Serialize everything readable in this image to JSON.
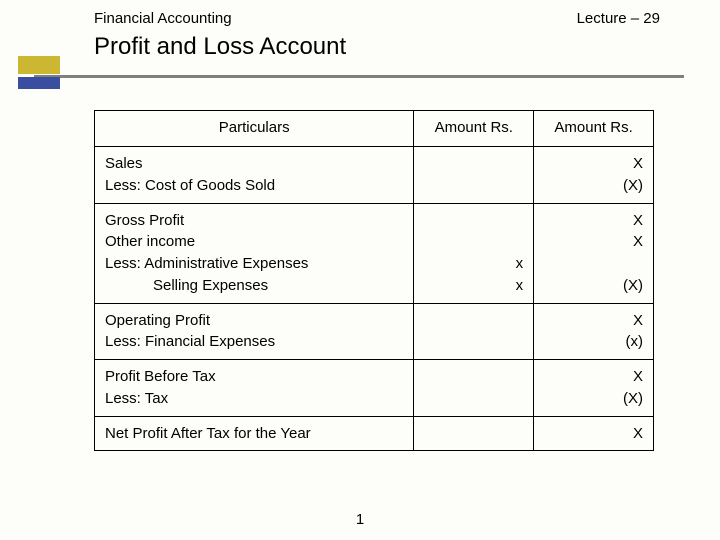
{
  "header": {
    "course": "Financial Accounting",
    "lecture": "Lecture – 29"
  },
  "title": "Profit and Loss Account",
  "table": {
    "headers": {
      "particulars": "Particulars",
      "amount1": "Amount Rs.",
      "amount2": "Amount Rs."
    },
    "rows": [
      {
        "particulars": [
          "Sales",
          "Less: Cost of Goods Sold"
        ],
        "amt1": [],
        "amt2": [
          "X",
          "(X)"
        ]
      },
      {
        "particulars": [
          "Gross Profit",
          "Other income",
          "Less: Administrative Expenses",
          "        Selling Expenses"
        ],
        "particulars_indent": [
          false,
          false,
          false,
          true
        ],
        "amt1": [
          "",
          "",
          "x",
          "x"
        ],
        "amt2": [
          "X",
          "X",
          "",
          "(X)"
        ]
      },
      {
        "particulars": [
          "Operating Profit",
          "Less: Financial Expenses"
        ],
        "amt1": [],
        "amt2": [
          "X",
          "(x)"
        ]
      },
      {
        "particulars": [
          "Profit Before Tax",
          "Less: Tax"
        ],
        "amt1": [],
        "amt2": [
          "X",
          "(X)"
        ]
      },
      {
        "particulars": [
          "Net Profit After Tax for the Year"
        ],
        "amt1": [],
        "amt2": [
          "X"
        ]
      }
    ]
  },
  "page_number": "1",
  "colors": {
    "accent_yellow": "#ccb733",
    "accent_blue": "#3a4ea1",
    "underline": "#808080",
    "background": "#fdfdf9"
  }
}
